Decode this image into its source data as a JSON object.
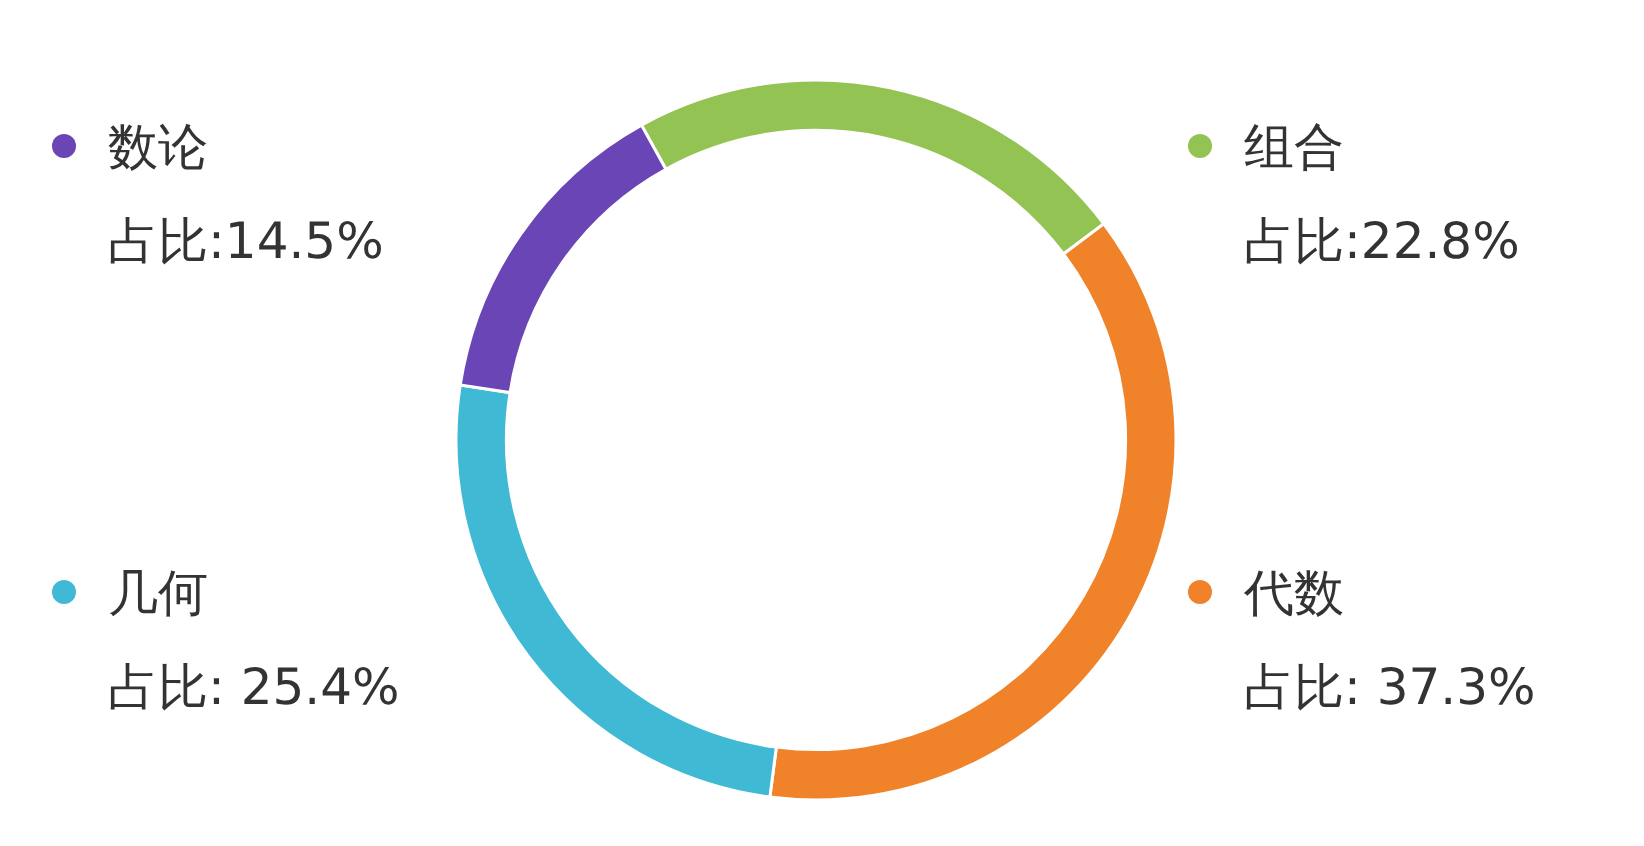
{
  "chart_data": {
    "type": "donut",
    "categories": [
      "组合",
      "代数",
      "几何",
      "数论"
    ],
    "values": [
      22.8,
      37.3,
      25.4,
      14.5
    ],
    "colors": [
      "#92c353",
      "#f0832a",
      "#3fb9d4",
      "#6a45b5"
    ],
    "legend": "top left",
    "value_labels": [
      "占比:22.8%",
      "占比: 37.3%",
      "占比: 25.4%",
      "占比:14.5%"
    ]
  }
}
